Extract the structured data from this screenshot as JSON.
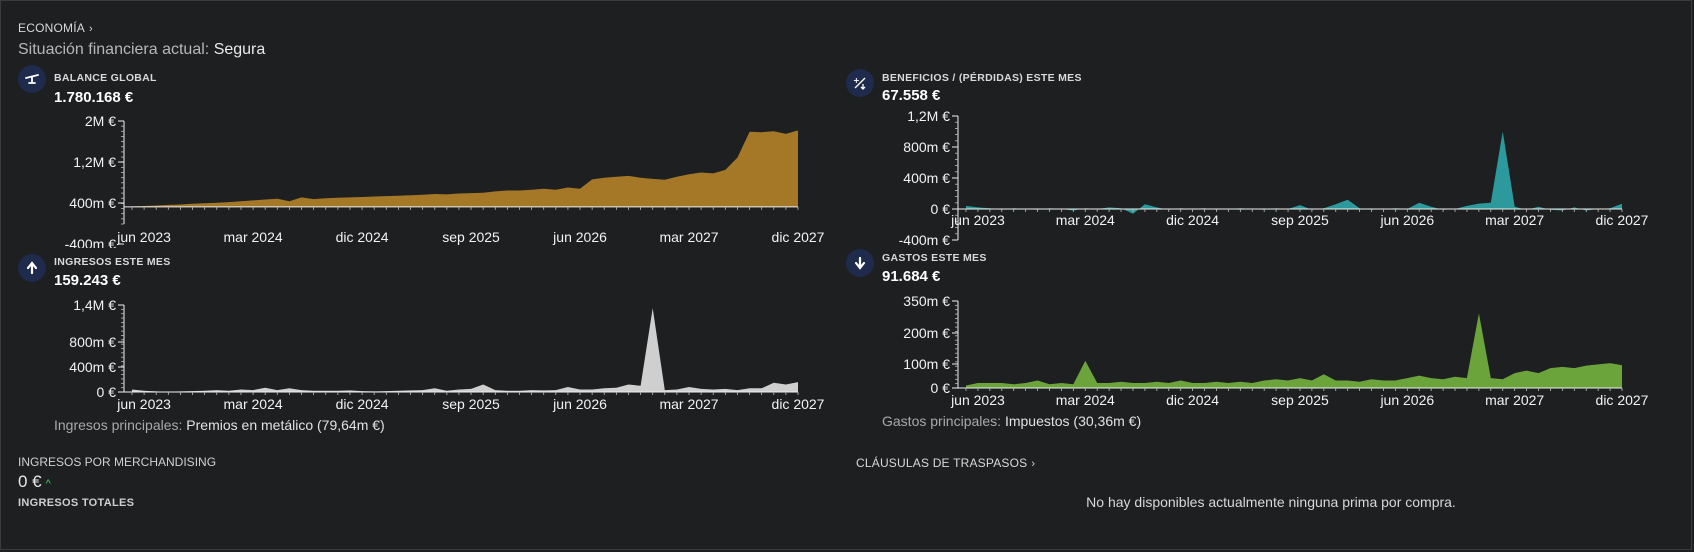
{
  "header": {
    "section_link": "ECONOMÍA",
    "status_label": "Situación financiera actual:",
    "status_value": "Segura"
  },
  "colors": {
    "balance": "#a57828",
    "profit": "#2c9a9c",
    "income": "#cfcfcf",
    "expenses": "#6ca43c",
    "icon_bg": "#1f2b4d"
  },
  "panels": {
    "balance": {
      "icon": "scale-icon",
      "label": "BALANCE GLOBAL",
      "value": "1.780.168 €"
    },
    "profit": {
      "icon": "plus-minus-icon",
      "label": "BENEFICIOS / (PÉRDIDAS) ESTE MES",
      "value": "67.558 €"
    },
    "income": {
      "icon": "arrow-up-icon",
      "label": "INGRESOS ESTE MES",
      "value": "159.243 €"
    },
    "expenses": {
      "icon": "arrow-down-icon",
      "label": "GASTOS ESTE MES",
      "value": "91.684 €"
    }
  },
  "income_main": {
    "label": "Ingresos principales:",
    "value": "Premios en metálico (79,64m €)"
  },
  "expenses_main": {
    "label": "Gastos principales:",
    "value": "Impuestos (30,36m €)"
  },
  "merchandising": {
    "label": "INGRESOS POR MERCHANDISING",
    "value": "0 €",
    "trend_icon": "caret-up-icon",
    "total_label": "INGRESOS TOTALES"
  },
  "transfers": {
    "link": "CLÁUSULAS DE TRASPASOS",
    "empty_text": "No hay disponibles actualmente ninguna prima por compra."
  },
  "chart_data": [
    {
      "id": "balance",
      "type": "area",
      "x_ticks": [
        "jun 2023",
        "mar 2024",
        "dic 2024",
        "sep 2025",
        "jun 2026",
        "mar 2027",
        "dic 2027"
      ],
      "y_ticks": [
        "2M €",
        "1,2M €",
        "400m €",
        "-400m €"
      ],
      "ylim": [
        -400000,
        2000000
      ],
      "x": [
        "2023-05",
        "2023-06",
        "2023-07",
        "2023-08",
        "2023-09",
        "2023-10",
        "2023-11",
        "2023-12",
        "2024-01",
        "2024-02",
        "2024-03",
        "2024-04",
        "2024-05",
        "2024-06",
        "2024-07",
        "2024-08",
        "2024-09",
        "2024-10",
        "2024-11",
        "2024-12",
        "2025-01",
        "2025-02",
        "2025-03",
        "2025-04",
        "2025-05",
        "2025-06",
        "2025-07",
        "2025-08",
        "2025-09",
        "2025-10",
        "2025-11",
        "2025-12",
        "2026-01",
        "2026-02",
        "2026-03",
        "2026-04",
        "2026-05",
        "2026-06",
        "2026-07",
        "2026-08",
        "2026-09",
        "2026-10",
        "2026-11",
        "2026-12",
        "2027-01",
        "2027-02",
        "2027-03",
        "2027-04",
        "2027-05",
        "2027-06",
        "2027-07",
        "2027-08",
        "2027-09",
        "2027-10",
        "2027-11",
        "2027-12"
      ],
      "values": [
        10000,
        20000,
        30000,
        45000,
        55000,
        70000,
        85000,
        95000,
        110000,
        130000,
        150000,
        170000,
        190000,
        130000,
        220000,
        180000,
        200000,
        210000,
        220000,
        230000,
        240000,
        250000,
        260000,
        270000,
        280000,
        300000,
        290000,
        310000,
        320000,
        330000,
        360000,
        380000,
        380000,
        400000,
        420000,
        400000,
        450000,
        420000,
        640000,
        680000,
        700000,
        720000,
        680000,
        650000,
        630000,
        700000,
        760000,
        800000,
        780000,
        860000,
        1150000,
        1750000,
        1740000,
        1760000,
        1700000,
        1780168
      ]
    },
    {
      "id": "profit",
      "type": "area",
      "x_ticks": [
        "jun 2023",
        "mar 2024",
        "dic 2024",
        "sep 2025",
        "jun 2026",
        "mar 2027",
        "dic 2027"
      ],
      "y_ticks": [
        "1,2M €",
        "800m €",
        "400m €",
        "0 €",
        "-400m €"
      ],
      "ylim": [
        -400000,
        1200000
      ],
      "x": [
        "2023-05",
        "2023-06",
        "2023-07",
        "2023-08",
        "2023-09",
        "2023-10",
        "2023-11",
        "2023-12",
        "2024-01",
        "2024-02",
        "2024-03",
        "2024-04",
        "2024-05",
        "2024-06",
        "2024-07",
        "2024-08",
        "2024-09",
        "2024-10",
        "2024-11",
        "2024-12",
        "2025-01",
        "2025-02",
        "2025-03",
        "2025-04",
        "2025-05",
        "2025-06",
        "2025-07",
        "2025-08",
        "2025-09",
        "2025-10",
        "2025-11",
        "2025-12",
        "2026-01",
        "2026-02",
        "2026-03",
        "2026-04",
        "2026-05",
        "2026-06",
        "2026-07",
        "2026-08",
        "2026-09",
        "2026-10",
        "2026-11",
        "2026-12",
        "2027-01",
        "2027-02",
        "2027-03",
        "2027-04",
        "2027-05",
        "2027-06",
        "2027-07",
        "2027-08",
        "2027-09",
        "2027-10",
        "2027-11",
        "2027-12"
      ],
      "values": [
        40000,
        20000,
        10000,
        -10000,
        10000,
        0,
        -10000,
        10000,
        0,
        -20000,
        10000,
        0,
        20000,
        10000,
        -60000,
        60000,
        20000,
        -10000,
        10000,
        0,
        10000,
        -10000,
        0,
        10000,
        0,
        -10000,
        10000,
        0,
        50000,
        -10000,
        10000,
        60000,
        120000,
        10000,
        -10000,
        0,
        10000,
        0,
        80000,
        30000,
        -10000,
        0,
        40000,
        70000,
        80000,
        1000000,
        30000,
        -10000,
        30000,
        -10000,
        -20000,
        20000,
        -20000,
        0,
        10000,
        67558
      ]
    },
    {
      "id": "income",
      "type": "area",
      "x_ticks": [
        "jun 2023",
        "mar 2024",
        "dic 2024",
        "sep 2025",
        "jun 2026",
        "mar 2027",
        "dic 2027"
      ],
      "y_ticks": [
        "1,4M €",
        "800m €",
        "400m €",
        "0 €"
      ],
      "ylim": [
        0,
        1400000
      ],
      "x": [
        "2023-05",
        "2023-06",
        "2023-07",
        "2023-08",
        "2023-09",
        "2023-10",
        "2023-11",
        "2023-12",
        "2024-01",
        "2024-02",
        "2024-03",
        "2024-04",
        "2024-05",
        "2024-06",
        "2024-07",
        "2024-08",
        "2024-09",
        "2024-10",
        "2024-11",
        "2024-12",
        "2025-01",
        "2025-02",
        "2025-03",
        "2025-04",
        "2025-05",
        "2025-06",
        "2025-07",
        "2025-08",
        "2025-09",
        "2025-10",
        "2025-11",
        "2025-12",
        "2026-01",
        "2026-02",
        "2026-03",
        "2026-04",
        "2026-05",
        "2026-06",
        "2026-07",
        "2026-08",
        "2026-09",
        "2026-10",
        "2026-11",
        "2026-12",
        "2027-01",
        "2027-02",
        "2027-03",
        "2027-04",
        "2027-05",
        "2027-06",
        "2027-07",
        "2027-08",
        "2027-09",
        "2027-10",
        "2027-11",
        "2027-12"
      ],
      "values": [
        40000,
        20000,
        10000,
        5000,
        10000,
        15000,
        20000,
        30000,
        20000,
        40000,
        30000,
        70000,
        30000,
        60000,
        30000,
        20000,
        20000,
        20000,
        25000,
        15000,
        10000,
        15000,
        20000,
        25000,
        30000,
        60000,
        20000,
        40000,
        50000,
        120000,
        30000,
        20000,
        20000,
        30000,
        25000,
        30000,
        80000,
        40000,
        40000,
        60000,
        70000,
        120000,
        100000,
        1350000,
        30000,
        40000,
        80000,
        50000,
        40000,
        50000,
        30000,
        60000,
        60000,
        150000,
        120000,
        159243
      ]
    },
    {
      "id": "expenses",
      "type": "area",
      "x_ticks": [
        "jun 2023",
        "mar 2024",
        "dic 2024",
        "sep 2025",
        "jun 2026",
        "mar 2027",
        "dic 2027"
      ],
      "y_ticks": [
        "350m €",
        "200m €",
        "100m €",
        "0 €"
      ],
      "ylim": [
        0,
        350000
      ],
      "x": [
        "2023-05",
        "2023-06",
        "2023-07",
        "2023-08",
        "2023-09",
        "2023-10",
        "2023-11",
        "2023-12",
        "2024-01",
        "2024-02",
        "2024-03",
        "2024-04",
        "2024-05",
        "2024-06",
        "2024-07",
        "2024-08",
        "2024-09",
        "2024-10",
        "2024-11",
        "2024-12",
        "2025-01",
        "2025-02",
        "2025-03",
        "2025-04",
        "2025-05",
        "2025-06",
        "2025-07",
        "2025-08",
        "2025-09",
        "2025-10",
        "2025-11",
        "2025-12",
        "2026-01",
        "2026-02",
        "2026-03",
        "2026-04",
        "2026-05",
        "2026-06",
        "2026-07",
        "2026-08",
        "2026-09",
        "2026-10",
        "2026-11",
        "2026-12",
        "2027-01",
        "2027-02",
        "2027-03",
        "2027-04",
        "2027-05",
        "2027-06",
        "2027-07",
        "2027-08",
        "2027-09",
        "2027-10",
        "2027-11",
        "2027-12"
      ],
      "values": [
        10000,
        20000,
        20000,
        20000,
        15000,
        20000,
        30000,
        15000,
        20000,
        15000,
        110000,
        20000,
        20000,
        25000,
        20000,
        20000,
        25000,
        20000,
        30000,
        20000,
        20000,
        25000,
        20000,
        25000,
        20000,
        30000,
        35000,
        30000,
        40000,
        30000,
        55000,
        30000,
        30000,
        25000,
        35000,
        30000,
        30000,
        40000,
        50000,
        40000,
        35000,
        45000,
        40000,
        300000,
        40000,
        35000,
        60000,
        70000,
        60000,
        80000,
        85000,
        80000,
        90000,
        95000,
        100000,
        91684
      ]
    }
  ]
}
